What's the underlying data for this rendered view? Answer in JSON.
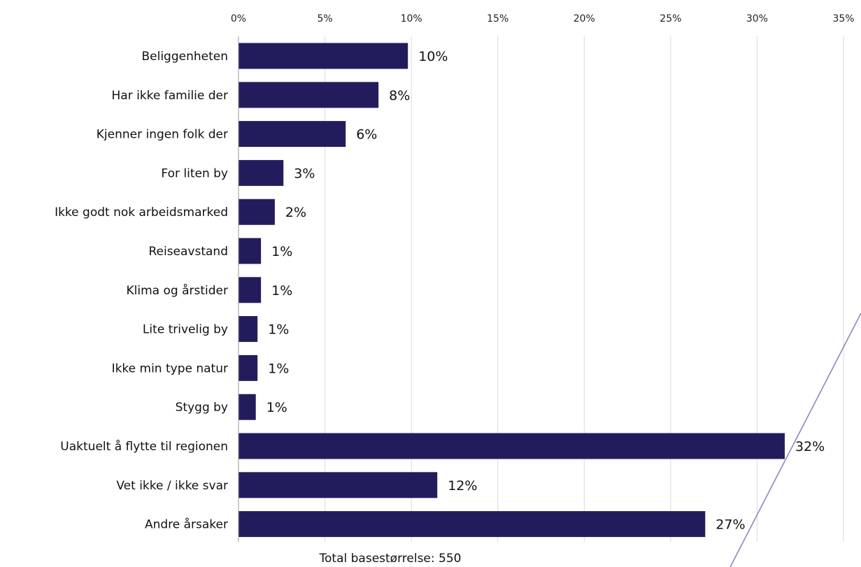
{
  "chart_data": {
    "type": "bar",
    "orientation": "horizontal",
    "categories": [
      "Beliggenheten",
      "Har ikke familie der",
      "Kjenner ingen folk der",
      "For liten by",
      "Ikke godt nok arbeidsmarked",
      "Reiseavstand",
      "Klima og årstider",
      "Lite trivelig by",
      "Ikke min type natur",
      "Stygg by",
      "Uaktuelt å flytte til regionen",
      "Vet ikke / ikke svar",
      "Andre årsaker"
    ],
    "values": [
      9.8,
      8.1,
      6.2,
      2.6,
      2.1,
      1.3,
      1.3,
      1.1,
      1.1,
      1.0,
      31.6,
      11.5,
      27.0
    ],
    "value_labels": [
      "10%",
      "8%",
      "6%",
      "3%",
      "2%",
      "1%",
      "1%",
      "1%",
      "1%",
      "1%",
      "32%",
      "12%",
      "27%"
    ],
    "xlim": [
      0,
      35
    ],
    "xticks": [
      0,
      5,
      10,
      15,
      20,
      25,
      30,
      35
    ],
    "xtick_labels": [
      "0%",
      "5%",
      "10%",
      "15%",
      "20%",
      "25%",
      "30%",
      "35%"
    ],
    "x_axis_position": "top",
    "grid": "vertical",
    "bar_color": "#231c5c",
    "note": "Total basestørrelse: 550"
  },
  "decor": {
    "slash_color": "#8f86c2"
  }
}
